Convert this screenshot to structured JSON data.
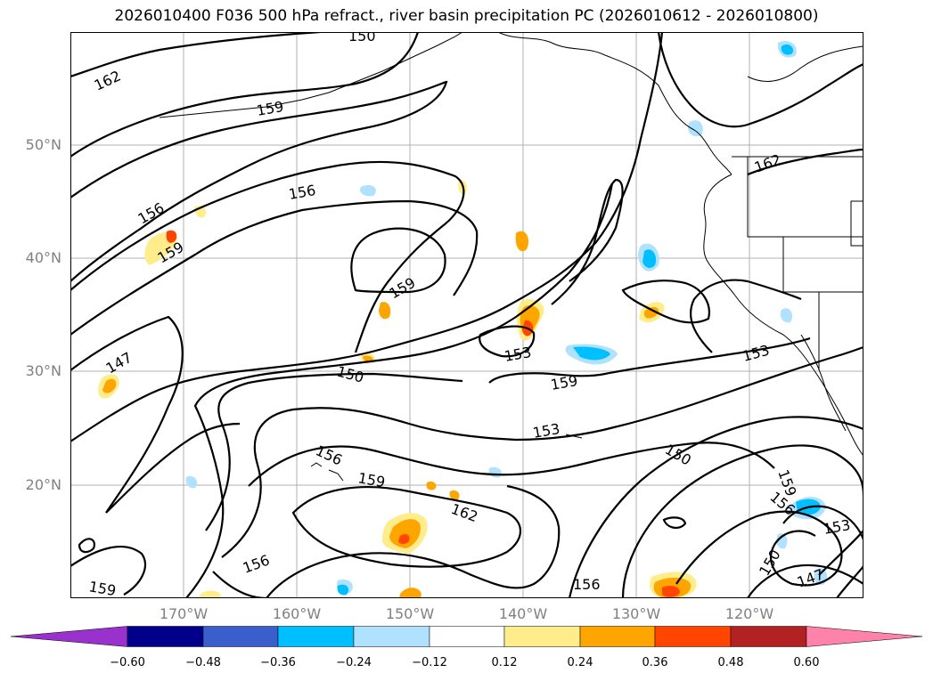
{
  "title": "2026010400 F036 500 hPa refract., river basin precipitation PC (2026010612 - 2026010800)",
  "lat_labels": [
    "50°N",
    "40°N",
    "30°N",
    "20°N"
  ],
  "lon_labels": [
    "170°W",
    "160°W",
    "150°W",
    "140°W",
    "130°W",
    "120°W"
  ],
  "contour_labels": [
    "162",
    "159",
    "156",
    "156",
    "159",
    "159",
    "147",
    "150",
    "153",
    "159",
    "153",
    "153",
    "150",
    "156",
    "159",
    "162",
    "156",
    "159",
    "156",
    "150",
    "147",
    "159",
    "156",
    "153",
    "150",
    "162"
  ],
  "colorbar": {
    "colors": [
      "#9932cc",
      "#00008b",
      "#3a5fcd",
      "#00bfff",
      "#b0e2ff",
      "#ffffff",
      "#ffec8b",
      "#ffa500",
      "#ff4500",
      "#b22222",
      "#ff82ab"
    ],
    "tick_labels": [
      "−0.60",
      "−0.48",
      "−0.36",
      "−0.24",
      "−0.12",
      "0.12",
      "0.24",
      "0.36",
      "0.48",
      "0.60"
    ]
  }
}
